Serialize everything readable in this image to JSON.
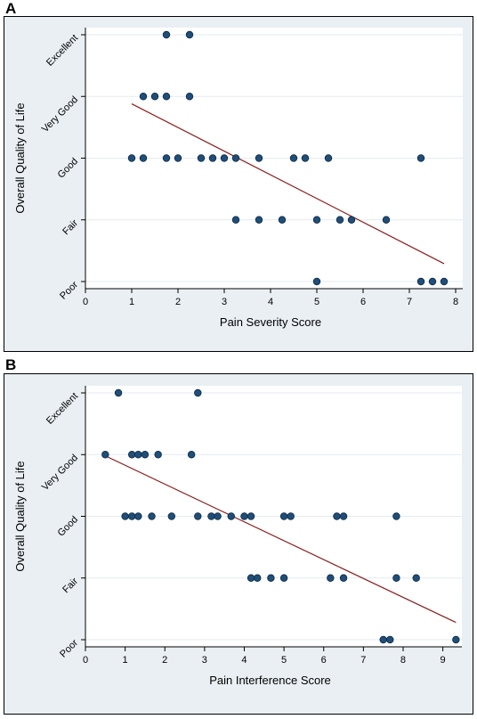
{
  "panels": {
    "a_label": "A",
    "b_label": "B"
  },
  "chart_data": [
    {
      "type": "scatter",
      "panel": "A",
      "title": "",
      "xlabel": "Pain Severity Score",
      "ylabel": "Overall Quality of Life",
      "xlim": [
        0,
        8
      ],
      "ylim": [
        1,
        5
      ],
      "x_ticks": [
        0,
        1,
        2,
        3,
        4,
        5,
        6,
        7,
        8
      ],
      "y_ticks": [
        1,
        2,
        3,
        4,
        5
      ],
      "y_tick_labels": [
        "Poor",
        "Fair",
        "Good",
        "Very Good",
        "Excellent"
      ],
      "grid": "horizontal",
      "marker_color": "#1f4e79",
      "fit_line_color": "#8b1a1a",
      "points": [
        {
          "x": 1.75,
          "y": 5
        },
        {
          "x": 2.25,
          "y": 5
        },
        {
          "x": 1.25,
          "y": 4
        },
        {
          "x": 1.5,
          "y": 4
        },
        {
          "x": 1.75,
          "y": 4
        },
        {
          "x": 2.25,
          "y": 4
        },
        {
          "x": 1.0,
          "y": 3
        },
        {
          "x": 1.25,
          "y": 3
        },
        {
          "x": 1.75,
          "y": 3
        },
        {
          "x": 2.0,
          "y": 3
        },
        {
          "x": 2.5,
          "y": 3
        },
        {
          "x": 2.75,
          "y": 3
        },
        {
          "x": 3.0,
          "y": 3
        },
        {
          "x": 3.25,
          "y": 3
        },
        {
          "x": 3.75,
          "y": 3
        },
        {
          "x": 4.5,
          "y": 3
        },
        {
          "x": 4.75,
          "y": 3
        },
        {
          "x": 5.25,
          "y": 3
        },
        {
          "x": 7.25,
          "y": 3
        },
        {
          "x": 3.25,
          "y": 2
        },
        {
          "x": 3.75,
          "y": 2
        },
        {
          "x": 4.25,
          "y": 2
        },
        {
          "x": 5.0,
          "y": 2
        },
        {
          "x": 5.5,
          "y": 2
        },
        {
          "x": 5.75,
          "y": 2
        },
        {
          "x": 6.5,
          "y": 2
        },
        {
          "x": 5.0,
          "y": 1
        },
        {
          "x": 7.25,
          "y": 1
        },
        {
          "x": 7.5,
          "y": 1
        },
        {
          "x": 7.75,
          "y": 1
        }
      ],
      "fit_line": [
        {
          "x": 1.0,
          "y": 3.88
        },
        {
          "x": 7.75,
          "y": 1.29
        }
      ]
    },
    {
      "type": "scatter",
      "panel": "B",
      "title": "",
      "xlabel": "Pain Interference Score",
      "ylabel": "Overall Quality of Life",
      "xlim": [
        0,
        9.3
      ],
      "ylim": [
        1,
        5
      ],
      "x_ticks": [
        0,
        1,
        2,
        3,
        4,
        5,
        6,
        7,
        8,
        9
      ],
      "y_ticks": [
        1,
        2,
        3,
        4,
        5
      ],
      "y_tick_labels": [
        "Poor",
        "Fair",
        "Good",
        "Very Good",
        "Excellent"
      ],
      "grid": "horizontal",
      "marker_color": "#1f4e79",
      "fit_line_color": "#8b1a1a",
      "points": [
        {
          "x": 0.83,
          "y": 5
        },
        {
          "x": 2.83,
          "y": 5
        },
        {
          "x": 0.5,
          "y": 4
        },
        {
          "x": 1.17,
          "y": 4
        },
        {
          "x": 1.33,
          "y": 4
        },
        {
          "x": 1.5,
          "y": 4
        },
        {
          "x": 1.83,
          "y": 4
        },
        {
          "x": 2.67,
          "y": 4
        },
        {
          "x": 1.0,
          "y": 3
        },
        {
          "x": 1.17,
          "y": 3
        },
        {
          "x": 1.33,
          "y": 3
        },
        {
          "x": 1.67,
          "y": 3
        },
        {
          "x": 2.17,
          "y": 3
        },
        {
          "x": 2.83,
          "y": 3
        },
        {
          "x": 3.17,
          "y": 3
        },
        {
          "x": 3.33,
          "y": 3
        },
        {
          "x": 3.67,
          "y": 3
        },
        {
          "x": 4.0,
          "y": 3
        },
        {
          "x": 4.17,
          "y": 3
        },
        {
          "x": 5.0,
          "y": 3
        },
        {
          "x": 5.17,
          "y": 3
        },
        {
          "x": 6.33,
          "y": 3
        },
        {
          "x": 6.5,
          "y": 3
        },
        {
          "x": 7.83,
          "y": 3
        },
        {
          "x": 4.17,
          "y": 2
        },
        {
          "x": 4.33,
          "y": 2
        },
        {
          "x": 4.67,
          "y": 2
        },
        {
          "x": 5.0,
          "y": 2
        },
        {
          "x": 6.17,
          "y": 2
        },
        {
          "x": 6.5,
          "y": 2
        },
        {
          "x": 7.83,
          "y": 2
        },
        {
          "x": 8.33,
          "y": 2
        },
        {
          "x": 7.5,
          "y": 1
        },
        {
          "x": 7.67,
          "y": 1
        },
        {
          "x": 9.33,
          "y": 1
        }
      ],
      "fit_line": [
        {
          "x": 0.5,
          "y": 3.98
        },
        {
          "x": 9.33,
          "y": 1.28
        }
      ]
    }
  ]
}
